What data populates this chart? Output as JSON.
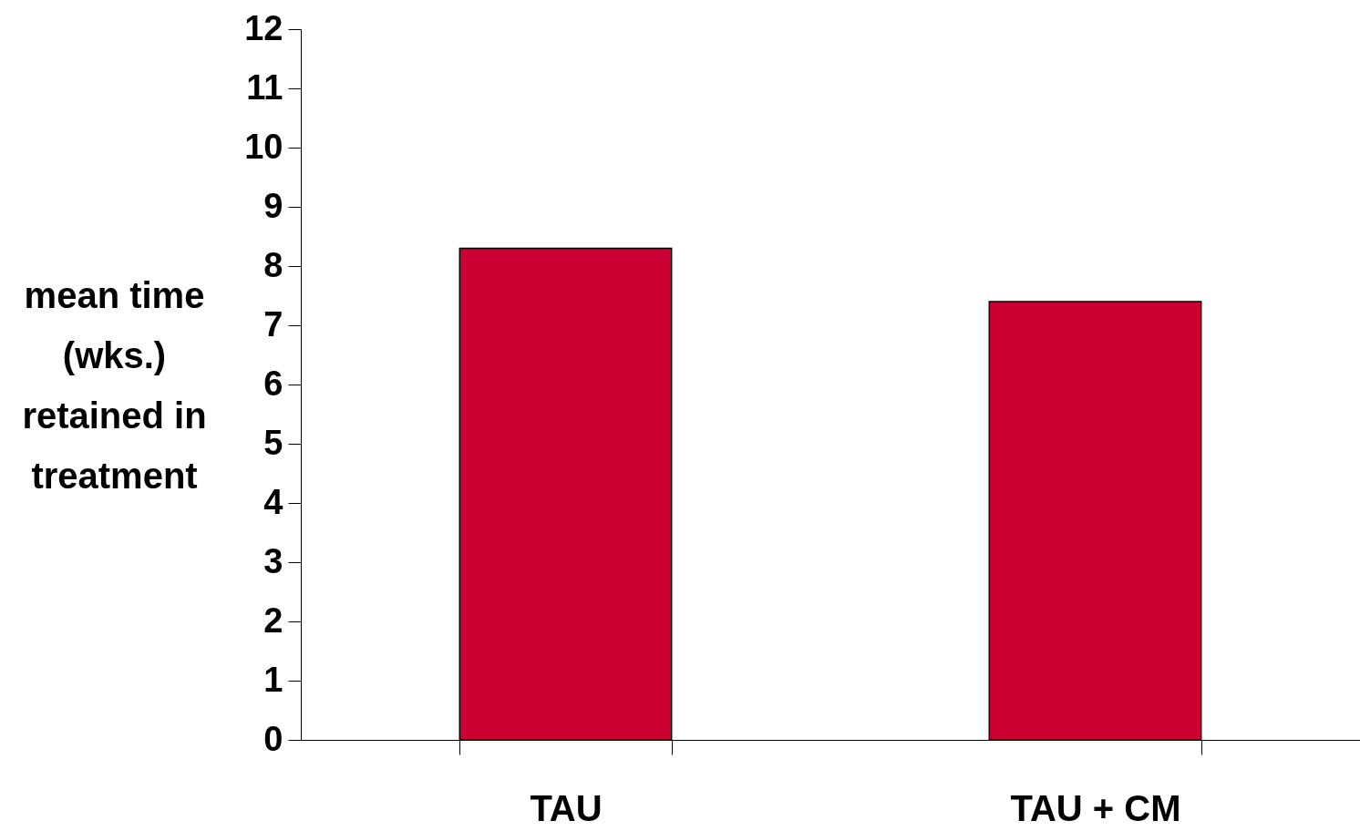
{
  "chart_data": {
    "type": "bar",
    "ylabel": "mean time (wks.) retained in treatment",
    "categories": [
      "TAU",
      "TAU + CM"
    ],
    "values": [
      8.3,
      7.4
    ],
    "color": "#cc0033",
    "ylim": [
      0,
      12
    ],
    "yticks": [
      0,
      1,
      2,
      3,
      4,
      5,
      6,
      7,
      8,
      9,
      10,
      11,
      12
    ],
    "grid": false,
    "legend": false
  }
}
